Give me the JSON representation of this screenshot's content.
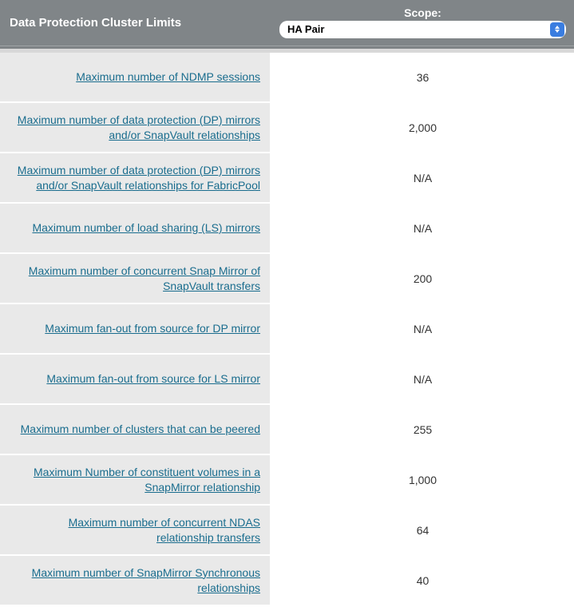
{
  "header": {
    "title": "Data Protection Cluster Limits",
    "scope_label": "Scope:",
    "scope_value": "HA Pair"
  },
  "rows": [
    {
      "label": "Maximum number of NDMP sessions",
      "value": "36"
    },
    {
      "label": "Maximum number of data protection (DP) mirrors and/or SnapVault relationships",
      "value": "2,000"
    },
    {
      "label": "Maximum number of data protection (DP) mirrors and/or SnapVault relationships for FabricPool",
      "value": "N/A"
    },
    {
      "label": "Maximum number of load sharing (LS) mirrors",
      "value": "N/A"
    },
    {
      "label": "Maximum number of concurrent Snap Mirror of SnapVault transfers",
      "value": "200"
    },
    {
      "label": "Maximum fan-out from source for DP mirror",
      "value": "N/A"
    },
    {
      "label": "Maximum fan-out from source for LS mirror",
      "value": "N/A"
    },
    {
      "label": "Maximum number of clusters that can be peered",
      "value": "255"
    },
    {
      "label": "Maximum Number of constituent volumes in a SnapMirror relationship",
      "value": "1,000"
    },
    {
      "label": "Maximum number of concurrent NDAS relationship transfers",
      "value": "64"
    },
    {
      "label": "Maximum number of SnapMirror Synchronous relationships",
      "value": "40"
    }
  ],
  "colors": {
    "header_bg": "#808588",
    "header_text": "#ffffff",
    "link_color": "#1a6d8e",
    "cell_left_bg": "#e9e9e9",
    "cell_right_bg": "#ffffff",
    "dropdown_btn": "#3a7de0"
  }
}
